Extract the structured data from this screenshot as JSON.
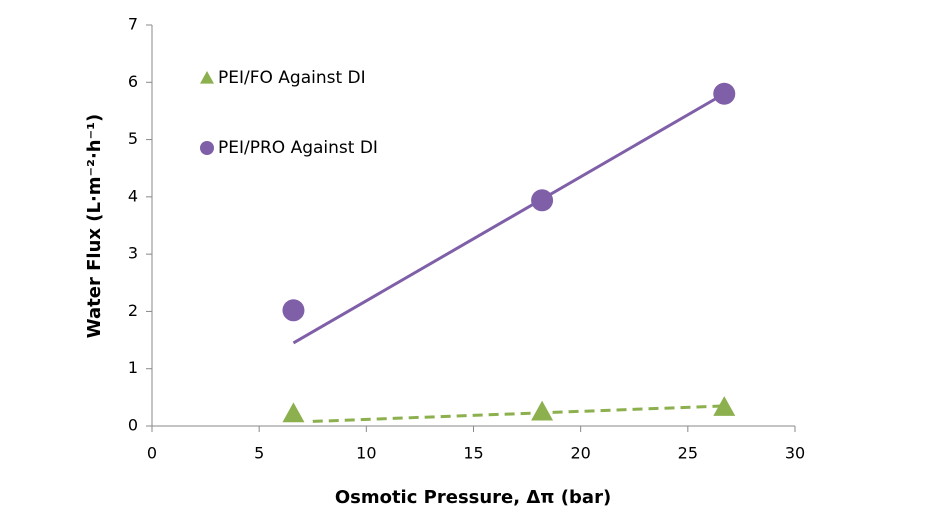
{
  "chart_data": {
    "type": "scatter",
    "x_label": "Osmotic Pressure, Δπ (bar)",
    "y_label": "Water Flux (L·m⁻²·h⁻¹)",
    "xlim": [
      0,
      30
    ],
    "xticks": [
      0,
      5,
      10,
      15,
      20,
      25,
      30
    ],
    "ylim": [
      0,
      7
    ],
    "yticks": [
      0,
      1,
      2,
      3,
      4,
      5,
      6,
      7
    ],
    "series": [
      {
        "name": "PEI/FO Against DI",
        "color": "#8db04f",
        "marker": "triangle",
        "x": [
          6.6,
          18.2,
          26.7
        ],
        "values": [
          0.22,
          0.25,
          0.33
        ],
        "trendline": {
          "style": "dashed",
          "x": [
            7.5,
            26.7
          ],
          "values": [
            0.08,
            0.35
          ]
        }
      },
      {
        "name": "PEI/PRO Against DI",
        "color": "#7f5fa8",
        "marker": "circle",
        "x": [
          6.6,
          18.2,
          26.7
        ],
        "values": [
          2.02,
          3.94,
          5.8
        ],
        "trendline": {
          "style": "solid",
          "x": [
            6.6,
            26.7
          ],
          "values": [
            1.45,
            5.8
          ]
        }
      }
    ]
  }
}
